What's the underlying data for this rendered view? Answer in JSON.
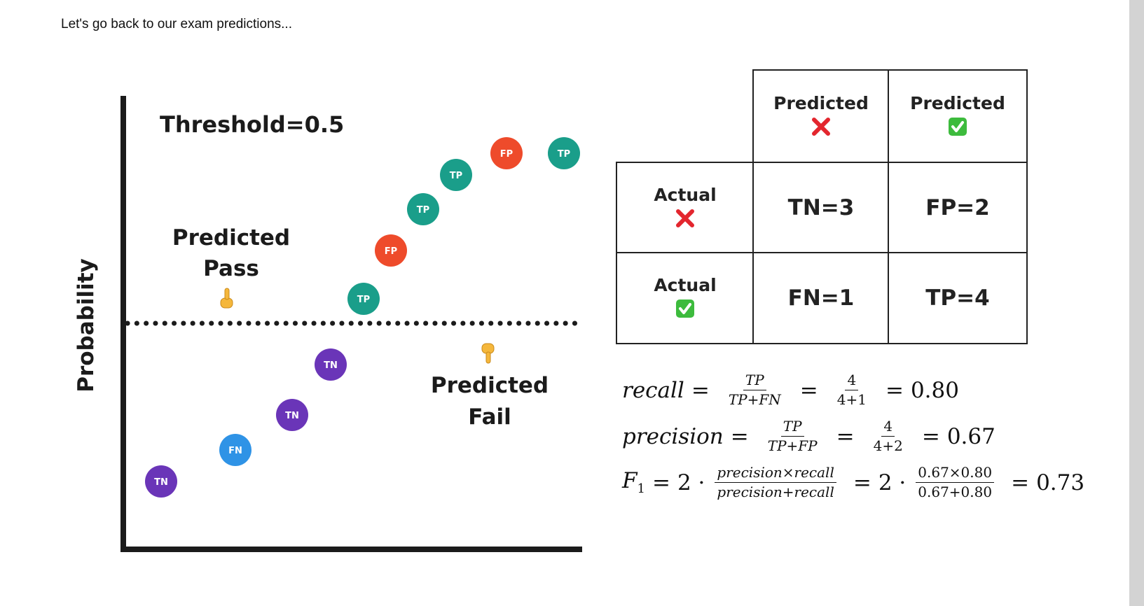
{
  "intro_text": "Let's go back to our exam predictions...",
  "diagram": {
    "threshold_label": "Threshold=0.5",
    "y_axis_label": "Probability",
    "region_above": {
      "line1": "Predicted",
      "line2": "Pass",
      "icon": "pointing-up-icon"
    },
    "region_below": {
      "line1": "Predicted",
      "line2": "Fail",
      "icon": "pointing-down-icon"
    },
    "threshold_value": 0.5,
    "points": [
      {
        "label": "TN",
        "category": "TN",
        "order": 1
      },
      {
        "label": "FN",
        "category": "FN",
        "order": 2
      },
      {
        "label": "TN",
        "category": "TN",
        "order": 3
      },
      {
        "label": "TN",
        "category": "TN",
        "order": 4
      },
      {
        "label": "TP",
        "category": "TP",
        "order": 5
      },
      {
        "label": "FP",
        "category": "FP",
        "order": 6
      },
      {
        "label": "TP",
        "category": "TP",
        "order": 7
      },
      {
        "label": "TP",
        "category": "TP",
        "order": 8
      },
      {
        "label": "FP",
        "category": "FP",
        "order": 9
      },
      {
        "label": "TP",
        "category": "TP",
        "order": 10
      }
    ],
    "colors": {
      "TP": "#1a9e8a",
      "FP": "#ee4b2b",
      "TN": "#6a35b8",
      "FN": "#2f93e6"
    }
  },
  "confusion_matrix": {
    "col_headers": [
      {
        "label": "Predicted",
        "icon": "red-cross-icon"
      },
      {
        "label": "Predicted",
        "icon": "green-check-icon"
      }
    ],
    "row_headers": [
      {
        "label": "Actual",
        "icon": "red-cross-icon"
      },
      {
        "label": "Actual",
        "icon": "green-check-icon"
      }
    ],
    "cells": [
      [
        "TN=3",
        "FP=2"
      ],
      [
        "FN=1",
        "TP=4"
      ]
    ]
  },
  "formulas": {
    "recall": {
      "name": "recall",
      "frac1_num": "TP",
      "frac1_den": "TP+FN",
      "frac2_num": "4",
      "frac2_den": "4+1",
      "result": "0.80"
    },
    "precision": {
      "name": "precision",
      "frac1_num": "TP",
      "frac1_den": "TP+FP",
      "frac2_num": "4",
      "frac2_den": "4+2",
      "result": "0.67"
    },
    "f1": {
      "name": "F",
      "subscript": "1",
      "coef": "2 ·",
      "frac1_num": "precision×recall",
      "frac1_den": "precision+recall",
      "frac2_num": "0.67×0.80",
      "frac2_den": "0.67+0.80",
      "result": "0.73"
    }
  }
}
